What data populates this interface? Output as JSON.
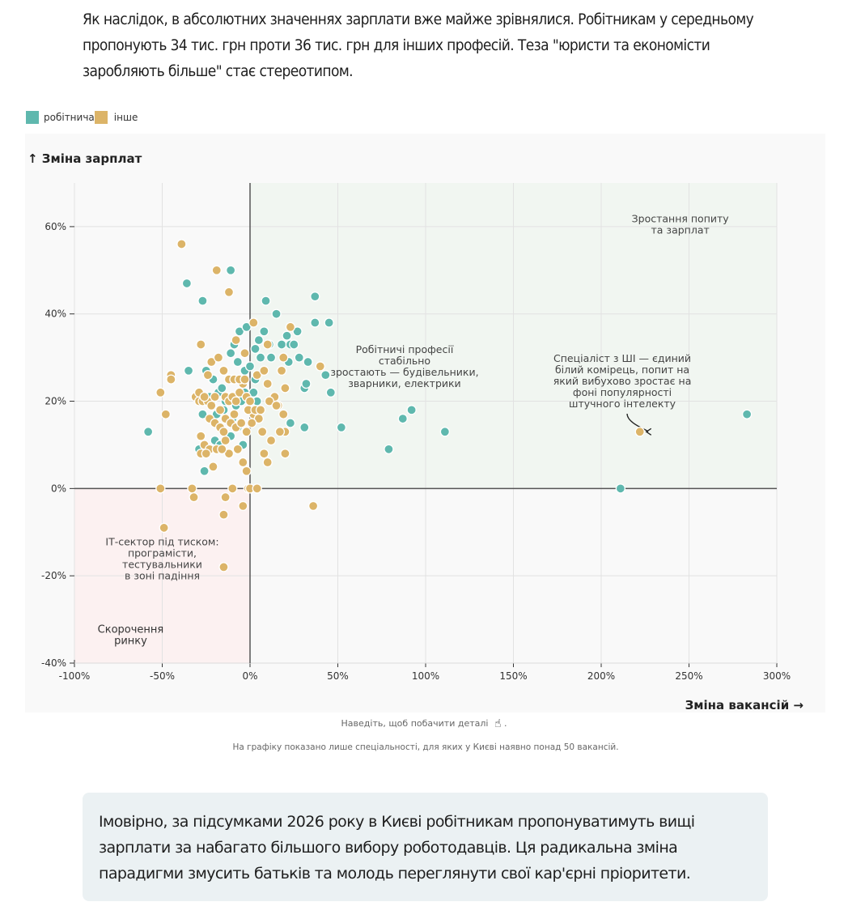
{
  "intro_text": "Як наслідок, в абсолютних значеннях зарплати вже майже зрівнялися. Робітникам у середньому пропонують 34 тис. грн проти 36 тис. грн для інших професій. Теза \"юристи та економісти заробляють більше\" стає стереотипом.",
  "legend": [
    {
      "label": "робітнича",
      "color": "#5fb8ae"
    },
    {
      "label": "інше",
      "color": "#dcb468"
    }
  ],
  "hint_text": "Наведіть, щоб побачити деталі",
  "hint_icon": "pointing-hand-icon",
  "hint_suffix": ".",
  "note_text": "На графіку показано лише спеціальності, для яких у Києві наявно понад 50 вакансій.",
  "callout_text": "Імовірно, за підсумками 2026 року в Києві робітникам пропонуватимуть вищі зарплати за набагато більшого вибору роботодавців. Ця радикальна зміна парадигми змусить батьків та молодь переглянути свої кар'єрні пріоритети.",
  "chart_data": {
    "type": "scatter",
    "title": "",
    "xlabel": "Зміна вакансій →",
    "ylabel": "↑ Зміна зарплат",
    "xlim": [
      -100,
      300
    ],
    "ylim": [
      -40,
      70
    ],
    "x_ticks": [
      -100,
      -50,
      0,
      50,
      100,
      150,
      200,
      250,
      300
    ],
    "x_tick_labels": [
      "-100%",
      "-50%",
      "0%",
      "50%",
      "100%",
      "150%",
      "200%",
      "250%",
      "300%"
    ],
    "y_ticks": [
      -40,
      -20,
      0,
      20,
      40,
      60
    ],
    "y_tick_labels": [
      "-40%",
      "-20%",
      "0%",
      "20%",
      "40%",
      "60%"
    ],
    "grid": true,
    "legend_position": "top-left",
    "quadrant_colors": {
      "growth": "#f1f6f1",
      "decline": "#fcf1f1"
    },
    "annotations": [
      {
        "id": "growth",
        "lines": [
          "Зростання попиту",
          "та зарплат"
        ],
        "x": 245,
        "y": 61
      },
      {
        "id": "workers",
        "lines": [
          "Робітничі професії",
          "стабільно",
          "зростають — будівельники,",
          "зварники, електрики"
        ],
        "x": 88,
        "y": 31
      },
      {
        "id": "ai",
        "lines": [
          "Спеціаліст з ШІ — єдиний",
          "білий комірець, попит на",
          "який вибухово зростає на",
          "фоні популярності",
          "штучного інтелекту"
        ],
        "x": 212,
        "y": 29
      },
      {
        "id": "it",
        "lines": [
          "ІТ-сектор під тиском:",
          "програмісти,",
          "тестувальники",
          "в зоні падіння"
        ],
        "x": -50,
        "y": -13
      },
      {
        "id": "decline",
        "lines": [
          "Скорочення",
          "ринку"
        ],
        "x": -68,
        "y": -33
      }
    ],
    "series": [
      {
        "name": "робітнича",
        "color": "#5fb8ae",
        "points": [
          [
            -58,
            13
          ],
          [
            -36,
            47
          ],
          [
            -27,
            43
          ],
          [
            -11,
            50
          ],
          [
            -35,
            27
          ],
          [
            -25,
            27
          ],
          [
            -21,
            25
          ],
          [
            -18,
            22
          ],
          [
            -16,
            23
          ],
          [
            -13,
            21
          ],
          [
            -22,
            20
          ],
          [
            -19,
            17
          ],
          [
            -15,
            18
          ],
          [
            -10,
            16
          ],
          [
            -8,
            19
          ],
          [
            -5,
            20
          ],
          [
            -3,
            22
          ],
          [
            -1,
            21
          ],
          [
            2,
            22
          ],
          [
            4,
            20
          ],
          [
            -27,
            17
          ],
          [
            -29,
            9
          ],
          [
            -26,
            4
          ],
          [
            -20,
            11
          ],
          [
            -17,
            10
          ],
          [
            -11,
            12
          ],
          [
            -4,
            10
          ],
          [
            -6,
            36
          ],
          [
            -2,
            37
          ],
          [
            -9,
            33
          ],
          [
            -11,
            31
          ],
          [
            -7,
            29
          ],
          [
            -3,
            27
          ],
          [
            0,
            28
          ],
          [
            3,
            32
          ],
          [
            5,
            34
          ],
          [
            6,
            30
          ],
          [
            8,
            36
          ],
          [
            9,
            43
          ],
          [
            15,
            40
          ],
          [
            11,
            33
          ],
          [
            12,
            30
          ],
          [
            18,
            33
          ],
          [
            21,
            35
          ],
          [
            22,
            29
          ],
          [
            23,
            33
          ],
          [
            25,
            33
          ],
          [
            27,
            36
          ],
          [
            28,
            30
          ],
          [
            31,
            23
          ],
          [
            33,
            29
          ],
          [
            37,
            44
          ],
          [
            37,
            38
          ],
          [
            45,
            38
          ],
          [
            43,
            26
          ],
          [
            46,
            22
          ],
          [
            32,
            24
          ],
          [
            23,
            15
          ],
          [
            31,
            14
          ],
          [
            52,
            14
          ],
          [
            79,
            9
          ],
          [
            87,
            16
          ],
          [
            92,
            18
          ],
          [
            111,
            13
          ],
          [
            211,
            0
          ],
          [
            283,
            17
          ],
          [
            -10,
            25
          ],
          [
            -14,
            20
          ],
          [
            -7,
            14
          ],
          [
            3,
            25
          ],
          [
            -1,
            18
          ],
          [
            -23,
            21
          ]
        ]
      },
      {
        "name": "інше",
        "color": "#dcb468",
        "points": [
          [
            -39,
            56
          ],
          [
            -19,
            50
          ],
          [
            -12,
            45
          ],
          [
            -28,
            33
          ],
          [
            -8,
            34
          ],
          [
            2,
            38
          ],
          [
            23,
            37
          ],
          [
            10,
            33
          ],
          [
            19,
            30
          ],
          [
            40,
            28
          ],
          [
            -45,
            26
          ],
          [
            -45,
            25
          ],
          [
            -51,
            22
          ],
          [
            -48,
            17
          ],
          [
            -31,
            21
          ],
          [
            -29,
            20
          ],
          [
            -27,
            20
          ],
          [
            -24,
            20
          ],
          [
            -22,
            19
          ],
          [
            -20,
            21
          ],
          [
            -17,
            18
          ],
          [
            -14,
            21
          ],
          [
            -12,
            20
          ],
          [
            -10,
            21
          ],
          [
            -8,
            20
          ],
          [
            -6,
            22
          ],
          [
            -4,
            24
          ],
          [
            -2,
            21
          ],
          [
            0,
            20
          ],
          [
            2,
            17
          ],
          [
            -29,
            22
          ],
          [
            -26,
            21
          ],
          [
            -24,
            26
          ],
          [
            -22,
            29
          ],
          [
            -18,
            30
          ],
          [
            -15,
            27
          ],
          [
            -12,
            25
          ],
          [
            -9,
            25
          ],
          [
            -6,
            25
          ],
          [
            -3,
            25
          ],
          [
            4,
            26
          ],
          [
            8,
            27
          ],
          [
            10,
            24
          ],
          [
            14,
            21
          ],
          [
            18,
            27
          ],
          [
            20,
            23
          ],
          [
            16,
            19
          ],
          [
            11,
            20
          ],
          [
            5,
            16
          ],
          [
            -1,
            18
          ],
          [
            -23,
            16
          ],
          [
            -20,
            15
          ],
          [
            -17,
            14
          ],
          [
            -14,
            16
          ],
          [
            -11,
            15
          ],
          [
            -8,
            14
          ],
          [
            -5,
            15
          ],
          [
            -2,
            13
          ],
          [
            1,
            15
          ],
          [
            3,
            18
          ],
          [
            -28,
            12
          ],
          [
            -26,
            10
          ],
          [
            -23,
            9
          ],
          [
            -19,
            9
          ],
          [
            -14,
            11
          ],
          [
            -12,
            8
          ],
          [
            -7,
            9
          ],
          [
            -4,
            6
          ],
          [
            -2,
            4
          ],
          [
            7,
            13
          ],
          [
            -28,
            8
          ],
          [
            -25,
            8
          ],
          [
            -15,
            13
          ],
          [
            -21,
            5
          ],
          [
            20,
            13
          ],
          [
            17,
            13
          ],
          [
            20,
            8
          ],
          [
            10,
            6
          ],
          [
            8,
            8
          ],
          [
            -16,
            9
          ],
          [
            -51,
            0
          ],
          [
            -33,
            0
          ],
          [
            -32,
            -2
          ],
          [
            -10,
            0
          ],
          [
            -14,
            -2
          ],
          [
            -1,
            0
          ],
          [
            0,
            0
          ],
          [
            4,
            0
          ],
          [
            -4,
            -4
          ],
          [
            -15,
            -6
          ],
          [
            36,
            -4
          ],
          [
            -49,
            -9
          ],
          [
            -15,
            -18
          ],
          [
            222,
            13
          ],
          [
            6,
            18
          ],
          [
            -9,
            17
          ],
          [
            12,
            11
          ],
          [
            -3,
            31
          ],
          [
            15,
            19
          ],
          [
            19,
            17
          ]
        ]
      }
    ]
  }
}
